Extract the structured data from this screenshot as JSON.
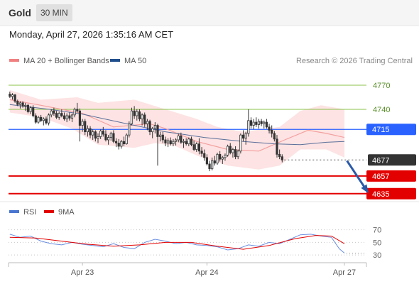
{
  "header": {
    "symbol": "Gold",
    "timeframe": "30 MIN"
  },
  "datetime": "Monday, April 27, 2026 1:35:16 AM CET",
  "legend": {
    "main": [
      {
        "label": "MA 20 + Bollinger Bands",
        "color": "#f08080"
      },
      {
        "label": "MA 50",
        "color": "#1f4e8c"
      }
    ],
    "rsi": [
      {
        "label": "RSI",
        "color": "#4a76d1"
      },
      {
        "label": "9MA",
        "color": "#e30000"
      }
    ]
  },
  "credit": "Research © 2026 Trading Central",
  "colors": {
    "resistance": "#8bc34a",
    "pivot": "#2962ff",
    "support": "#e30000",
    "price": "#333333",
    "candle": "#333333",
    "arrow": "#2a5aa8"
  },
  "chart_data": {
    "type": "candlestick",
    "ylim": [
      4626,
      4785
    ],
    "levels": [
      {
        "value": 4770,
        "label": "4770",
        "role": "resistance"
      },
      {
        "value": 4740,
        "label": "4740",
        "role": "resistance"
      },
      {
        "value": 4715,
        "label": "4715",
        "role": "pivot"
      },
      {
        "value": 4677,
        "label": "4677",
        "role": "last-price"
      },
      {
        "value": 4657,
        "label": "4657",
        "role": "support"
      },
      {
        "value": 4635,
        "label": "4635",
        "role": "support"
      }
    ],
    "x_ticks": [
      {
        "label": "Apr 23",
        "bar": 28
      },
      {
        "label": "Apr 24",
        "bar": 76
      },
      {
        "label": "Apr 27",
        "bar": 129
      }
    ],
    "candles": [
      [
        4759,
        4762,
        4754,
        4756
      ],
      [
        4756,
        4760,
        4752,
        4758
      ],
      [
        4758,
        4759,
        4748,
        4750
      ],
      [
        4750,
        4752,
        4744,
        4746
      ],
      [
        4746,
        4750,
        4741,
        4748
      ],
      [
        4748,
        4750,
        4742,
        4744
      ],
      [
        4744,
        4748,
        4738,
        4745
      ],
      [
        4745,
        4747,
        4735,
        4737
      ],
      [
        4737,
        4744,
        4734,
        4742
      ],
      [
        4742,
        4745,
        4730,
        4732
      ],
      [
        4732,
        4735,
        4722,
        4724
      ],
      [
        4724,
        4732,
        4722,
        4730
      ],
      [
        4730,
        4733,
        4724,
        4726
      ],
      [
        4726,
        4730,
        4720,
        4728
      ],
      [
        4728,
        4731,
        4721,
        4723
      ],
      [
        4723,
        4735,
        4720,
        4733
      ],
      [
        4733,
        4740,
        4730,
        4738
      ],
      [
        4738,
        4742,
        4732,
        4735
      ],
      [
        4735,
        4738,
        4728,
        4730
      ],
      [
        4730,
        4737,
        4727,
        4735
      ],
      [
        4735,
        4740,
        4730,
        4732
      ],
      [
        4732,
        4736,
        4726,
        4728
      ],
      [
        4728,
        4735,
        4724,
        4732
      ],
      [
        4732,
        4736,
        4726,
        4729
      ],
      [
        4729,
        4735,
        4724,
        4733
      ],
      [
        4733,
        4742,
        4730,
        4740
      ],
      [
        4740,
        4748,
        4736,
        4738
      ],
      [
        4738,
        4741,
        4700,
        4720
      ],
      [
        4720,
        4728,
        4712,
        4725
      ],
      [
        4725,
        4728,
        4708,
        4712
      ],
      [
        4712,
        4720,
        4706,
        4716
      ],
      [
        4716,
        4719,
        4704,
        4708
      ],
      [
        4708,
        4715,
        4702,
        4712
      ],
      [
        4712,
        4714,
        4700,
        4704
      ],
      [
        4704,
        4710,
        4698,
        4706
      ],
      [
        4706,
        4715,
        4703,
        4713
      ],
      [
        4713,
        4718,
        4706,
        4709
      ],
      [
        4709,
        4714,
        4700,
        4702
      ],
      [
        4702,
        4708,
        4696,
        4705
      ],
      [
        4705,
        4712,
        4701,
        4710
      ],
      [
        4710,
        4714,
        4698,
        4700
      ],
      [
        4700,
        4704,
        4693,
        4698
      ],
      [
        4698,
        4703,
        4690,
        4694
      ],
      [
        4694,
        4702,
        4691,
        4700
      ],
      [
        4700,
        4706,
        4694,
        4697
      ],
      [
        4697,
        4710,
        4696,
        4708
      ],
      [
        4708,
        4725,
        4705,
        4722
      ],
      [
        4722,
        4742,
        4720,
        4738
      ],
      [
        4738,
        4744,
        4728,
        4732
      ],
      [
        4732,
        4740,
        4726,
        4737
      ],
      [
        4737,
        4740,
        4725,
        4728
      ],
      [
        4728,
        4735,
        4720,
        4733
      ],
      [
        4733,
        4736,
        4718,
        4722
      ],
      [
        4722,
        4728,
        4714,
        4725
      ],
      [
        4725,
        4727,
        4708,
        4712
      ],
      [
        4712,
        4718,
        4704,
        4716
      ],
      [
        4716,
        4724,
        4710,
        4720
      ],
      [
        4720,
        4722,
        4670,
        4706
      ],
      [
        4706,
        4712,
        4700,
        4708
      ],
      [
        4708,
        4712,
        4698,
        4702
      ],
      [
        4702,
        4706,
        4694,
        4698
      ],
      [
        4698,
        4704,
        4693,
        4701
      ],
      [
        4701,
        4705,
        4695,
        4697
      ],
      [
        4697,
        4703,
        4694,
        4700
      ],
      [
        4700,
        4704,
        4695,
        4702
      ],
      [
        4702,
        4710,
        4699,
        4707
      ],
      [
        4707,
        4711,
        4697,
        4699
      ],
      [
        4699,
        4703,
        4692,
        4700
      ],
      [
        4700,
        4704,
        4695,
        4697
      ],
      [
        4697,
        4705,
        4694,
        4703
      ],
      [
        4703,
        4706,
        4694,
        4696
      ],
      [
        4696,
        4701,
        4688,
        4690
      ],
      [
        4690,
        4699,
        4687,
        4697
      ],
      [
        4697,
        4704,
        4684,
        4688
      ],
      [
        4688,
        4693,
        4681,
        4685
      ],
      [
        4685,
        4690,
        4676,
        4680
      ],
      [
        4680,
        4684,
        4670,
        4672
      ],
      [
        4672,
        4676,
        4663,
        4666
      ],
      [
        4666,
        4680,
        4664,
        4676
      ],
      [
        4676,
        4682,
        4670,
        4673
      ],
      [
        4673,
        4686,
        4671,
        4684
      ],
      [
        4684,
        4688,
        4675,
        4678
      ],
      [
        4678,
        4682,
        4672,
        4680
      ],
      [
        4680,
        4685,
        4676,
        4683
      ],
      [
        4683,
        4696,
        4681,
        4694
      ],
      [
        4694,
        4698,
        4684,
        4686
      ],
      [
        4686,
        4692,
        4680,
        4690
      ],
      [
        4690,
        4694,
        4678,
        4681
      ],
      [
        4681,
        4690,
        4678,
        4688
      ],
      [
        4688,
        4710,
        4685,
        4708
      ],
      [
        4708,
        4714,
        4700,
        4704
      ],
      [
        4704,
        4712,
        4696,
        4710
      ],
      [
        4710,
        4740,
        4706,
        4726
      ],
      [
        4726,
        4730,
        4716,
        4720
      ],
      [
        4720,
        4728,
        4715,
        4724
      ],
      [
        4724,
        4730,
        4718,
        4721
      ],
      [
        4721,
        4728,
        4716,
        4725
      ],
      [
        4725,
        4728,
        4719,
        4722
      ],
      [
        4722,
        4726,
        4716,
        4724
      ],
      [
        4724,
        4728,
        4716,
        4718
      ],
      [
        4718,
        4722,
        4710,
        4714
      ],
      [
        4714,
        4720,
        4705,
        4710
      ],
      [
        4710,
        4713,
        4700,
        4703
      ],
      [
        4703,
        4708,
        4680,
        4684
      ],
      [
        4684,
        4690,
        4678,
        4681
      ],
      [
        4681,
        4684,
        4674,
        4677
      ]
    ],
    "ma20": [
      [
        0,
        4752
      ],
      [
        12,
        4745
      ],
      [
        28,
        4735
      ],
      [
        40,
        4718
      ],
      [
        54,
        4722
      ],
      [
        60,
        4716
      ],
      [
        72,
        4700
      ],
      [
        84,
        4690
      ],
      [
        96,
        4688
      ],
      [
        106,
        4702
      ],
      [
        115,
        4714
      ],
      [
        122,
        4710
      ],
      [
        129,
        4705
      ]
    ],
    "ma50": [
      [
        0,
        4746
      ],
      [
        15,
        4740
      ],
      [
        28,
        4734
      ],
      [
        45,
        4722
      ],
      [
        60,
        4712
      ],
      [
        75,
        4705
      ],
      [
        90,
        4700
      ],
      [
        102,
        4697
      ],
      [
        112,
        4696
      ],
      [
        122,
        4699
      ],
      [
        129,
        4700
      ]
    ],
    "bb_upper": [
      [
        0,
        4764
      ],
      [
        12,
        4752
      ],
      [
        26,
        4755
      ],
      [
        34,
        4748
      ],
      [
        48,
        4752
      ],
      [
        60,
        4740
      ],
      [
        72,
        4728
      ],
      [
        80,
        4718
      ],
      [
        90,
        4712
      ],
      [
        104,
        4718
      ],
      [
        112,
        4738
      ],
      [
        120,
        4745
      ],
      [
        129,
        4740
      ]
    ],
    "bb_lower": [
      [
        0,
        4736
      ],
      [
        12,
        4730
      ],
      [
        24,
        4716
      ],
      [
        34,
        4696
      ],
      [
        48,
        4692
      ],
      [
        56,
        4698
      ],
      [
        64,
        4694
      ],
      [
        74,
        4680
      ],
      [
        84,
        4670
      ],
      [
        96,
        4665
      ],
      [
        104,
        4670
      ],
      [
        112,
        4690
      ],
      [
        122,
        4690
      ],
      [
        129,
        4680
      ]
    ],
    "projection": {
      "from_bar": 130,
      "from_value": 4676,
      "to_bar": 138,
      "to_value": 4637
    },
    "rsi": {
      "ticks": [
        70,
        50,
        30
      ],
      "ylim": [
        20,
        82
      ],
      "rsi_line": [
        [
          0,
          63
        ],
        [
          4,
          58
        ],
        [
          8,
          60
        ],
        [
          12,
          52
        ],
        [
          16,
          48
        ],
        [
          20,
          46
        ],
        [
          24,
          50
        ],
        [
          28,
          47
        ],
        [
          32,
          45
        ],
        [
          36,
          43
        ],
        [
          40,
          48
        ],
        [
          44,
          42
        ],
        [
          48,
          40
        ],
        [
          52,
          50
        ],
        [
          56,
          55
        ],
        [
          60,
          52
        ],
        [
          64,
          48
        ],
        [
          68,
          50
        ],
        [
          72,
          46
        ],
        [
          76,
          45
        ],
        [
          80,
          43
        ],
        [
          84,
          38
        ],
        [
          88,
          40
        ],
        [
          92,
          46
        ],
        [
          96,
          44
        ],
        [
          100,
          50
        ],
        [
          104,
          48
        ],
        [
          108,
          55
        ],
        [
          112,
          62
        ],
        [
          116,
          63
        ],
        [
          120,
          60
        ],
        [
          124,
          58
        ],
        [
          127,
          40
        ],
        [
          129,
          33
        ]
      ],
      "ma_line": [
        [
          0,
          58
        ],
        [
          10,
          57
        ],
        [
          20,
          52
        ],
        [
          30,
          47
        ],
        [
          40,
          44
        ],
        [
          50,
          46
        ],
        [
          60,
          50
        ],
        [
          70,
          50
        ],
        [
          80,
          44
        ],
        [
          90,
          39
        ],
        [
          100,
          45
        ],
        [
          110,
          56
        ],
        [
          118,
          61
        ],
        [
          124,
          60
        ],
        [
          129,
          48
        ]
      ]
    }
  }
}
